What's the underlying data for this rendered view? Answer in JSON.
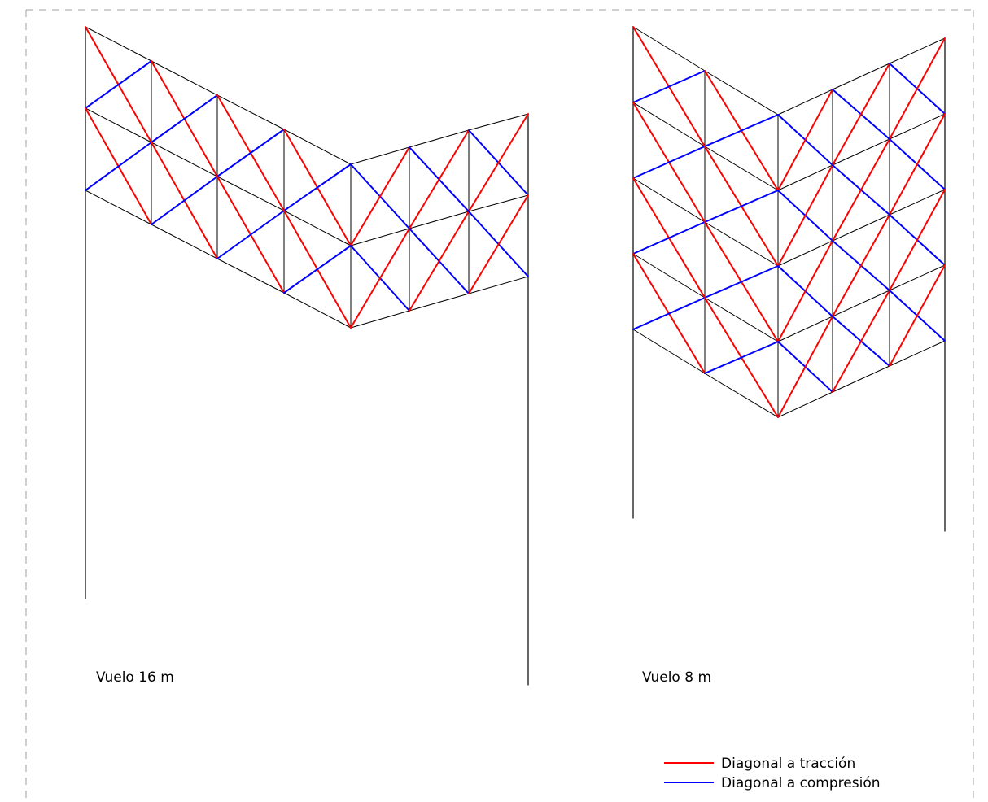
{
  "labels": {
    "left_truss": "Vuelo 16 m",
    "right_truss": "Vuelo 8 m"
  },
  "legend": {
    "tension": "Diagonal a tracción",
    "compression": "Diagonal a compresión"
  },
  "colors": {
    "tension": "#ff0000",
    "compression": "#0000ff",
    "structure": "#000000",
    "frame": "#a0a0a0"
  }
}
